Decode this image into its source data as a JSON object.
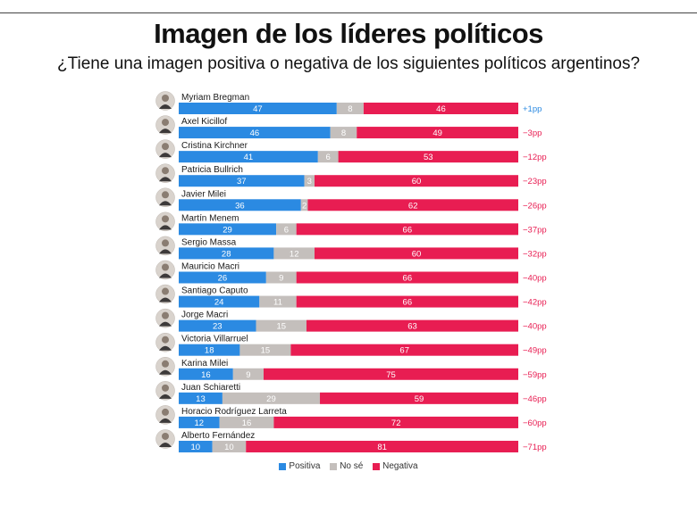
{
  "header_cut_text": "",
  "title": "Imagen de los líderes políticos",
  "subtitle": "¿Tiene una imagen positiva o negativa de los siguientes políticos argentinos?",
  "colors": {
    "positiva": "#2b8ae2",
    "no_se": "#c4bfbc",
    "negativa": "#e81d52",
    "diff_positive": "#2b8ae2",
    "diff_negative": "#e81d52"
  },
  "legend": [
    {
      "label": "Positiva",
      "color": "#2b8ae2"
    },
    {
      "label": "No sé",
      "color": "#c4bfbc"
    },
    {
      "label": "Negativa",
      "color": "#e81d52"
    }
  ],
  "chart_data": {
    "type": "bar",
    "orientation": "horizontal",
    "stacked": true,
    "xlim": [
      0,
      100
    ],
    "grid": false,
    "legend_position": "bottom-center",
    "categories": [
      "Myriam Bregman",
      "Axel Kicillof",
      "Cristina Kirchner",
      "Patricia Bullrich",
      "Javier Milei",
      "Martín Menem",
      "Sergio Massa",
      "Mauricio Macri",
      "Santiago Caputo",
      "Jorge Macri",
      "Victoria Villarruel",
      "Karina Milei",
      "Juan Schiaretti",
      "Horacio Rodríguez Larreta",
      "Alberto Fernández"
    ],
    "series": [
      {
        "name": "Positiva",
        "values": [
          47,
          46,
          41,
          37,
          36,
          29,
          28,
          26,
          24,
          23,
          18,
          16,
          13,
          12,
          10
        ]
      },
      {
        "name": "No sé",
        "values": [
          8,
          8,
          6,
          3,
          2,
          6,
          12,
          9,
          11,
          15,
          15,
          9,
          29,
          16,
          10
        ]
      },
      {
        "name": "Negativa",
        "values": [
          46,
          49,
          53,
          60,
          62,
          66,
          60,
          66,
          66,
          63,
          67,
          75,
          59,
          72,
          81
        ]
      }
    ],
    "net_labels": [
      "+1pp",
      "−3pp",
      "−12pp",
      "−23pp",
      "−26pp",
      "−37pp",
      "−32pp",
      "−40pp",
      "−42pp",
      "−40pp",
      "−49pp",
      "−59pp",
      "−46pp",
      "−60pp",
      "−71pp"
    ]
  }
}
